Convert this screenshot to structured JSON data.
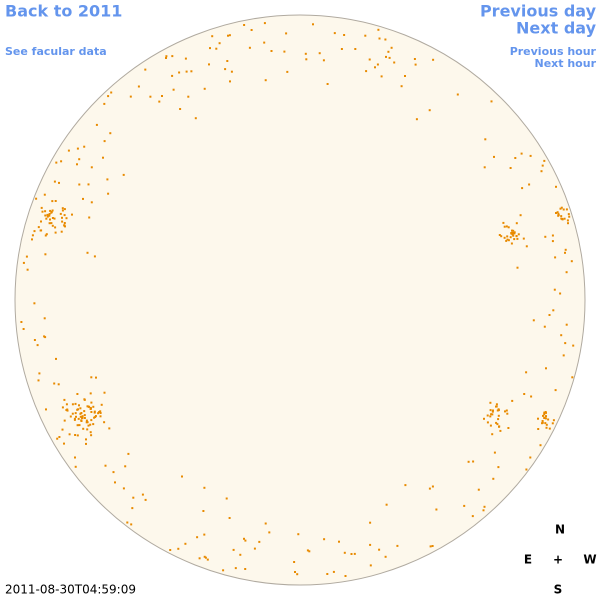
{
  "header": {
    "back_link": "Back to 2011",
    "facular_link": "See facular data"
  },
  "navigation": {
    "previous_day": "Previous day",
    "next_day": "Next day",
    "previous_hour": "Previous hour",
    "next_hour": "Next hour"
  },
  "compass": {
    "north": "N",
    "east": "E",
    "center": "+",
    "west": "W",
    "south": "S"
  },
  "timestamp": "2011-08-30T04:59:09"
}
